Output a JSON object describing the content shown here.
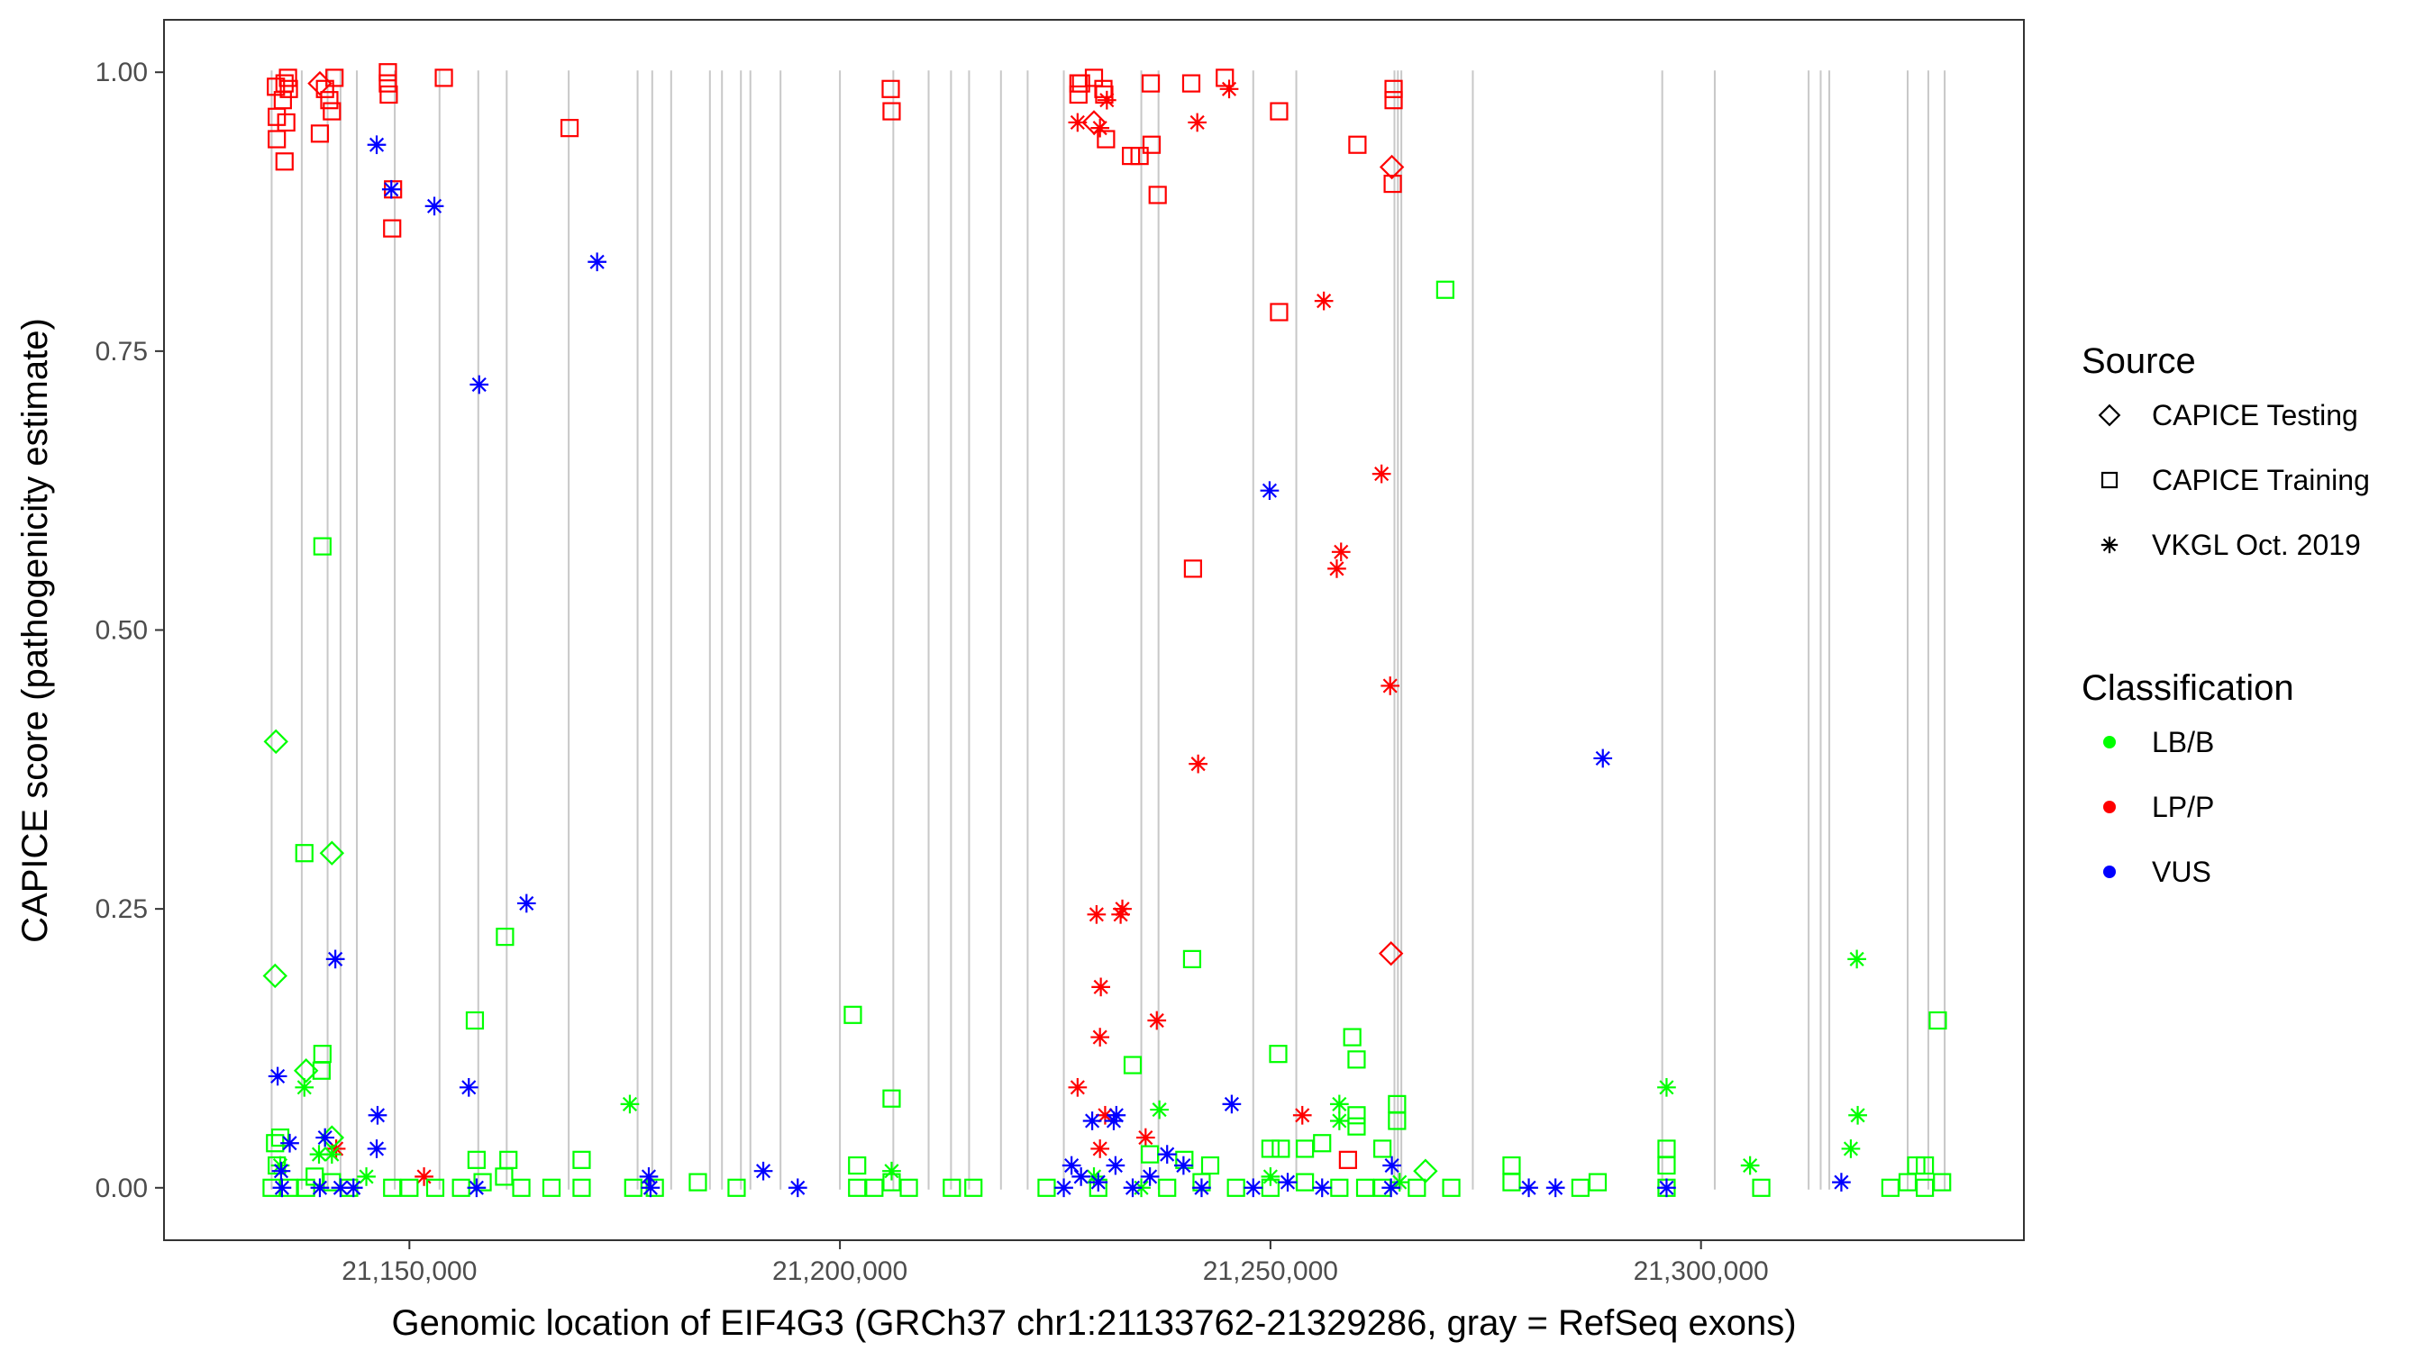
{
  "chart_data": {
    "type": "scatter",
    "title": "",
    "xlabel": "Genomic location of EIF4G3 (GRCh37 chr1:21133762-21329286, gray = RefSeq exons)",
    "ylabel": "CAPICE score (pathogenicity estimate)",
    "xlim": [
      21121500,
      21337500
    ],
    "ylim": [
      -0.047,
      1.047
    ],
    "x_ticks": [
      21150000,
      21200000,
      21250000,
      21300000
    ],
    "x_tick_labels": [
      "21,150,000",
      "21,200,000",
      "21,250,000",
      "21,300,000"
    ],
    "y_ticks": [
      0,
      0.25,
      0.5,
      0.75,
      1
    ],
    "y_tick_labels": [
      "0.00",
      "0.25",
      "0.50",
      "0.75",
      "1.00"
    ],
    "exons": [
      21134000,
      21137500,
      21140500,
      21142000,
      21143900,
      21148300,
      21153500,
      21158000,
      21161300,
      21168500,
      21176500,
      21178200,
      21180400,
      21184900,
      21186300,
      21188500,
      21189600,
      21193100,
      21200000,
      21206200,
      21210300,
      21212900,
      21215000,
      21218700,
      21221800,
      21226000,
      21235000,
      21237000,
      21248000,
      21253000,
      21264400,
      21264800,
      21265200,
      21273500,
      21295500,
      21301600,
      21312500,
      21313900,
      21314900,
      21324000,
      21326400,
      21328300
    ],
    "legend": [
      {
        "title": "Source",
        "entries": [
          {
            "label": "CAPICE Testing",
            "shape": "diamond"
          },
          {
            "label": "CAPICE Training",
            "shape": "square"
          },
          {
            "label": "VKGL Oct. 2019",
            "shape": "asterisk"
          }
        ]
      },
      {
        "title": "Classification",
        "entries": [
          {
            "label": "LB/B",
            "color": "#00FF00"
          },
          {
            "label": "LP/P",
            "color": "#FF0000"
          },
          {
            "label": "VUS",
            "color": "#0000FF"
          }
        ]
      }
    ],
    "colors": {
      "LB/B": "#00FF00",
      "LP/P": "#FF0000",
      "VUS": "#0000FF"
    },
    "series": [
      {
        "source": "CAPICE Training",
        "class": "LP/P",
        "points": [
          [
            21134500,
            0.987
          ],
          [
            21134600,
            0.96
          ],
          [
            21134600,
            0.94
          ],
          [
            21135300,
            0.975
          ],
          [
            21135500,
            0.99
          ],
          [
            21135700,
            0.955
          ],
          [
            21135500,
            0.92
          ],
          [
            21135900,
            0.995
          ],
          [
            21136000,
            0.985
          ],
          [
            21139600,
            0.945
          ],
          [
            21140200,
            0.985
          ],
          [
            21140700,
            0.975
          ],
          [
            21141000,
            0.965
          ],
          [
            21141300,
            0.995
          ],
          [
            21147500,
            1.0
          ],
          [
            21147500,
            0.99
          ],
          [
            21147600,
            0.98
          ],
          [
            21148000,
            0.86
          ],
          [
            21148100,
            0.895
          ],
          [
            21154000,
            0.995
          ],
          [
            21168600,
            0.95
          ],
          [
            21205900,
            0.985
          ],
          [
            21206000,
            0.965
          ],
          [
            21227700,
            0.98
          ],
          [
            21227700,
            0.99
          ],
          [
            21228000,
            0.99
          ],
          [
            21229500,
            0.995
          ],
          [
            21230600,
            0.985
          ],
          [
            21230700,
            0.98
          ],
          [
            21230900,
            0.94
          ],
          [
            21233800,
            0.925
          ],
          [
            21234800,
            0.925
          ],
          [
            21236100,
            0.99
          ],
          [
            21236200,
            0.935
          ],
          [
            21236900,
            0.89
          ],
          [
            21240800,
            0.99
          ],
          [
            21244700,
            0.995
          ],
          [
            21251000,
            0.965
          ],
          [
            21251000,
            0.785
          ],
          [
            21241000,
            0.555
          ],
          [
            21259000,
            0.025
          ],
          [
            21260100,
            0.935
          ],
          [
            21264300,
            0.985
          ],
          [
            21264300,
            0.975
          ],
          [
            21264200,
            0.9
          ]
        ]
      },
      {
        "source": "CAPICE Testing",
        "class": "LP/P",
        "points": [
          [
            21139600,
            0.99
          ],
          [
            21229500,
            0.955
          ],
          [
            21264100,
            0.915
          ],
          [
            21264000,
            0.21
          ]
        ]
      },
      {
        "source": "VKGL Oct. 2019",
        "class": "LP/P",
        "points": [
          [
            21227600,
            0.955
          ],
          [
            21230200,
            0.95
          ],
          [
            21231000,
            0.975
          ],
          [
            21241500,
            0.955
          ],
          [
            21245200,
            0.985
          ],
          [
            21256200,
            0.795
          ],
          [
            21257700,
            0.555
          ],
          [
            21258200,
            0.57
          ],
          [
            21262900,
            0.64
          ],
          [
            21263900,
            0.45
          ],
          [
            21241600,
            0.38
          ],
          [
            21229800,
            0.245
          ],
          [
            21232600,
            0.245
          ],
          [
            21232800,
            0.25
          ],
          [
            21230300,
            0.18
          ],
          [
            21230200,
            0.135
          ],
          [
            21227600,
            0.09
          ],
          [
            21236800,
            0.15
          ],
          [
            21230800,
            0.065
          ],
          [
            21235500,
            0.045
          ],
          [
            21253700,
            0.065
          ],
          [
            21230200,
            0.035
          ],
          [
            21141500,
            0.035
          ],
          [
            21151700,
            0.01
          ]
        ]
      },
      {
        "source": "CAPICE Training",
        "class": "LB/B",
        "points": [
          [
            21134400,
            0.04
          ],
          [
            21134600,
            0.02
          ],
          [
            21135000,
            0.045
          ],
          [
            21137800,
            0.3
          ],
          [
            21139900,
            0.12
          ],
          [
            21139800,
            0.105
          ],
          [
            21139900,
            0.575
          ],
          [
            21157600,
            0.15
          ],
          [
            21161100,
            0.225
          ],
          [
            21201500,
            0.155
          ],
          [
            21206000,
            0.08
          ],
          [
            21240900,
            0.205
          ],
          [
            21250900,
            0.12
          ],
          [
            21251200,
            0.035
          ],
          [
            21259500,
            0.135
          ],
          [
            21260000,
            0.115
          ],
          [
            21260000,
            0.065
          ],
          [
            21260000,
            0.055
          ],
          [
            21264700,
            0.075
          ],
          [
            21264700,
            0.06
          ],
          [
            21270300,
            0.805
          ],
          [
            21327500,
            0.15
          ],
          [
            21296000,
            0.035
          ],
          [
            21296000,
            0.02
          ],
          [
            21157800,
            0.025
          ],
          [
            21161500,
            0.025
          ],
          [
            21170000,
            0.025
          ],
          [
            21240000,
            0.025
          ],
          [
            21236000,
            0.03
          ],
          [
            21250000,
            0.035
          ],
          [
            21234000,
            0.11
          ],
          [
            21254000,
            0.035
          ],
          [
            21243000,
            0.02
          ],
          [
            21256000,
            0.04
          ],
          [
            21263000,
            0.035
          ],
          [
            21202000,
            0.02
          ],
          [
            21278000,
            0.02
          ],
          [
            21325000,
            0.02
          ],
          [
            21326000,
            0.02
          ],
          [
            21134000,
            0.0
          ],
          [
            21136000,
            0.0
          ],
          [
            21138000,
            0.0
          ],
          [
            21139000,
            0.01
          ],
          [
            21141000,
            0.005
          ],
          [
            21143000,
            0.0
          ],
          [
            21148000,
            0.0
          ],
          [
            21150000,
            0.0
          ],
          [
            21153000,
            0.0
          ],
          [
            21156000,
            0.0
          ],
          [
            21158500,
            0.005
          ],
          [
            21161000,
            0.01
          ],
          [
            21163000,
            0.0
          ],
          [
            21166500,
            0.0
          ],
          [
            21170000,
            0.0
          ],
          [
            21176000,
            0.0
          ],
          [
            21178500,
            0.0
          ],
          [
            21183500,
            0.005
          ],
          [
            21188000,
            0.0
          ],
          [
            21202000,
            0.0
          ],
          [
            21204000,
            0.0
          ],
          [
            21206000,
            0.005
          ],
          [
            21208000,
            0.0
          ],
          [
            21213000,
            0.0
          ],
          [
            21215500,
            0.0
          ],
          [
            21224000,
            0.0
          ],
          [
            21230000,
            0.0
          ],
          [
            21238000,
            0.0
          ],
          [
            21242000,
            0.005
          ],
          [
            21246000,
            0.0
          ],
          [
            21250000,
            0.0
          ],
          [
            21254000,
            0.005
          ],
          [
            21258000,
            0.0
          ],
          [
            21261000,
            0.0
          ],
          [
            21263000,
            0.0
          ],
          [
            21267000,
            0.0
          ],
          [
            21271000,
            0.0
          ],
          [
            21278000,
            0.005
          ],
          [
            21286000,
            0.0
          ],
          [
            21288000,
            0.005
          ],
          [
            21296000,
            0.0
          ],
          [
            21307000,
            0.0
          ],
          [
            21322000,
            0.0
          ],
          [
            21324000,
            0.005
          ],
          [
            21326000,
            0.0
          ],
          [
            21328000,
            0.005
          ]
        ]
      },
      {
        "source": "CAPICE Testing",
        "class": "LB/B",
        "points": [
          [
            21134500,
            0.4
          ],
          [
            21134400,
            0.19
          ],
          [
            21141000,
            0.3
          ],
          [
            21138000,
            0.105
          ],
          [
            21268000,
            0.015
          ],
          [
            21141000,
            0.045
          ]
        ]
      },
      {
        "source": "VKGL Oct. 2019",
        "class": "LB/B",
        "points": [
          [
            21137800,
            0.09
          ],
          [
            21139500,
            0.03
          ],
          [
            21141000,
            0.03
          ],
          [
            21175600,
            0.075
          ],
          [
            21296000,
            0.09
          ],
          [
            21305700,
            0.02
          ],
          [
            21318100,
            0.205
          ],
          [
            21318200,
            0.065
          ],
          [
            21317400,
            0.035
          ],
          [
            21237100,
            0.07
          ],
          [
            21258000,
            0.075
          ],
          [
            21258000,
            0.06
          ],
          [
            21206000,
            0.015
          ],
          [
            21229500,
            0.01
          ],
          [
            21135000,
            0.02
          ],
          [
            21145000,
            0.01
          ],
          [
            21235000,
            0.0
          ],
          [
            21250000,
            0.01
          ],
          [
            21265000,
            0.005
          ]
        ]
      },
      {
        "source": "VKGL Oct. 2019",
        "class": "VUS",
        "points": [
          [
            21146200,
            0.935
          ],
          [
            21147900,
            0.895
          ],
          [
            21152900,
            0.88
          ],
          [
            21171800,
            0.83
          ],
          [
            21158100,
            0.72
          ],
          [
            21163600,
            0.255
          ],
          [
            21141400,
            0.205
          ],
          [
            21134700,
            0.1
          ],
          [
            21156900,
            0.09
          ],
          [
            21146300,
            0.065
          ],
          [
            21146200,
            0.035
          ],
          [
            21140200,
            0.045
          ],
          [
            21136100,
            0.04
          ],
          [
            21135100,
            0.015
          ],
          [
            21177800,
            0.01
          ],
          [
            21191100,
            0.015
          ],
          [
            21195100,
            0.0
          ],
          [
            21249900,
            0.625
          ],
          [
            21288600,
            0.385
          ],
          [
            21245500,
            0.075
          ],
          [
            21226900,
            0.02
          ],
          [
            21231800,
            0.06
          ],
          [
            21232100,
            0.065
          ],
          [
            21229300,
            0.06
          ],
          [
            21239900,
            0.02
          ],
          [
            21283100,
            0.0
          ],
          [
            21316300,
            0.005
          ],
          [
            21264100,
            0.02
          ],
          [
            21135200,
            0.0
          ],
          [
            21139600,
            0.0
          ],
          [
            21142000,
            0.0
          ],
          [
            21143500,
            0.0
          ],
          [
            21157800,
            0.0
          ],
          [
            21178000,
            0.0
          ],
          [
            21226000,
            0.0
          ],
          [
            21228000,
            0.01
          ],
          [
            21230000,
            0.005
          ],
          [
            21232000,
            0.02
          ],
          [
            21234000,
            0.0
          ],
          [
            21236000,
            0.01
          ],
          [
            21238000,
            0.03
          ],
          [
            21242000,
            0.0
          ],
          [
            21248000,
            0.0
          ],
          [
            21252000,
            0.005
          ],
          [
            21256000,
            0.0
          ],
          [
            21264000,
            0.0
          ],
          [
            21280000,
            0.0
          ],
          [
            21296000,
            0.0
          ]
        ]
      }
    ]
  }
}
